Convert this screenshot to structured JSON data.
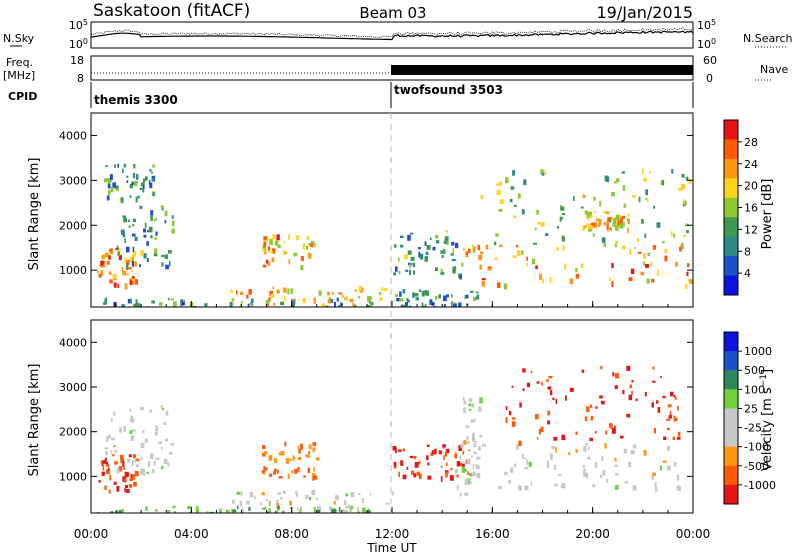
{
  "header": {
    "station": "Saskatoon (fitACF)",
    "beam": "Beam 03",
    "date": "19/Jan/2015"
  },
  "side_labels": {
    "nsky": "N.Sky",
    "nsearch": "N.Search",
    "freq": "Freq.",
    "freq_unit": "[MHz]",
    "nave": "Nave",
    "cpid": "CPID"
  },
  "strip_ticks": {
    "noise_left_top": "10^5",
    "noise_left_bottom": "10^0",
    "noise_right_top": "10^5",
    "noise_right_bottom": "10^0",
    "freq_left_top": "18",
    "freq_left_bottom": "8",
    "nave_right_top": "60",
    "nave_right_bottom": "0"
  },
  "cpid_labels": [
    {
      "text": "themis 3300",
      "start_hour": 0
    },
    {
      "text": "twofsound 3503",
      "start_hour": 12
    }
  ],
  "colors": {
    "power_scale": [
      "#0a14dc",
      "#1e50c8",
      "#2e8a8a",
      "#3c9a50",
      "#8ec832",
      "#ffd21e",
      "#ff9614",
      "#ff5a0a",
      "#e61414"
    ],
    "velocity_scale": [
      "#e61414",
      "#ff5a0a",
      "#ff9614",
      "#c8c8c8",
      "#c8c8c8",
      "#6ed23c",
      "#2e8a5a",
      "#1e50c8",
      "#0a14dc"
    ]
  },
  "chart_data": [
    {
      "type": "heatmap",
      "panel": "power",
      "xlabel": "",
      "ylabel": "Slant Range [km]",
      "xlim": [
        0,
        24
      ],
      "ylim": [
        180,
        4500
      ],
      "y_ticks": [
        1000,
        2000,
        3000,
        4000
      ],
      "colorbar": {
        "label": "Power [dB]",
        "ticks": [
          "4",
          "8",
          "12",
          "16",
          "20",
          "24",
          "28"
        ],
        "range": [
          0,
          30
        ]
      },
      "patches": [
        {
          "x": [
            0.2,
            1.8
          ],
          "y": [
            700,
            1500
          ],
          "v": 24
        },
        {
          "x": [
            1.0,
            3.3
          ],
          "y": [
            1100,
            2500
          ],
          "v": 10
        },
        {
          "x": [
            0.5,
            2.5
          ],
          "y": [
            2600,
            3400
          ],
          "v": 9
        },
        {
          "x": [
            6.8,
            9.0
          ],
          "y": [
            1100,
            1800
          ],
          "v": 22
        },
        {
          "x": [
            5.5,
            11.8
          ],
          "y": [
            250,
            650
          ],
          "v": 20
        },
        {
          "x": [
            0.0,
            11.8
          ],
          "y": [
            180,
            400
          ],
          "v": 8
        },
        {
          "x": [
            12.0,
            14.8
          ],
          "y": [
            900,
            1900
          ],
          "v": 10
        },
        {
          "x": [
            14.8,
            23.9
          ],
          "y": [
            700,
            1600
          ],
          "v": 22
        },
        {
          "x": [
            15.5,
            23.9
          ],
          "y": [
            1600,
            3300
          ],
          "v": 14
        },
        {
          "x": [
            19.5,
            21.5
          ],
          "y": [
            1950,
            2350
          ],
          "v": 20
        },
        {
          "x": [
            12.0,
            15.5
          ],
          "y": [
            180,
            600
          ],
          "v": 8
        }
      ]
    },
    {
      "type": "heatmap",
      "panel": "velocity",
      "xlabel": "Time UT",
      "ylabel": "Slant Range [km]",
      "xlim": [
        0,
        24
      ],
      "ylim": [
        180,
        4500
      ],
      "x_ticks": [
        "00:00",
        "04:00",
        "08:00",
        "12:00",
        "16:00",
        "20:00",
        "00:00"
      ],
      "y_ticks": [
        1000,
        2000,
        3000,
        4000
      ],
      "colorbar": {
        "label": "Velocity [m s^-1]",
        "ticks": [
          "1000",
          "500",
          "100",
          "25",
          "-25",
          "-100",
          "-500",
          "-1000"
        ]
      },
      "patches": [
        {
          "x": [
            0.3,
            1.8
          ],
          "y": [
            700,
            1500
          ],
          "v": -500
        },
        {
          "x": [
            0.5,
            3.3
          ],
          "y": [
            1100,
            2600
          ],
          "v": 0
        },
        {
          "x": [
            6.8,
            9.0
          ],
          "y": [
            1000,
            1800
          ],
          "v": -100
        },
        {
          "x": [
            5.5,
            12.0
          ],
          "y": [
            250,
            700
          ],
          "v": 0
        },
        {
          "x": [
            0.0,
            11.5
          ],
          "y": [
            180,
            350
          ],
          "v": 100
        },
        {
          "x": [
            12.0,
            15.0
          ],
          "y": [
            1000,
            1800
          ],
          "v": -500
        },
        {
          "x": [
            15.0,
            23.9
          ],
          "y": [
            750,
            1750
          ],
          "v": 0
        },
        {
          "x": [
            16.5,
            23.5
          ],
          "y": [
            1800,
            3500
          ],
          "v": -500
        },
        {
          "x": [
            14.5,
            15.5
          ],
          "y": [
            600,
            2800
          ],
          "v": 0
        }
      ]
    }
  ]
}
